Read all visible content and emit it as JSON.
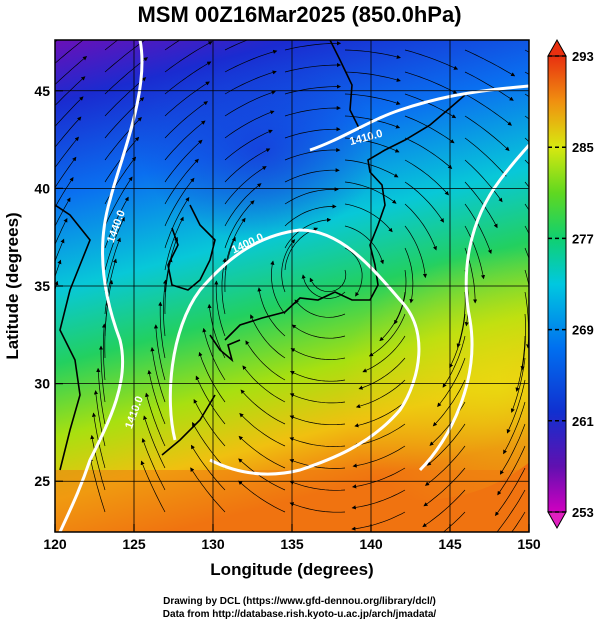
{
  "title": "MSM 00Z16Mar2025 (850.0hPa)",
  "x_axis": {
    "label": "Longitude (degrees)",
    "min": 120,
    "max": 150,
    "ticks": [
      {
        "value": 120,
        "label": "120"
      },
      {
        "value": 125,
        "label": "125"
      },
      {
        "value": 130,
        "label": "130"
      },
      {
        "value": 135,
        "label": "135"
      },
      {
        "value": 140,
        "label": "140"
      },
      {
        "value": 145,
        "label": "145"
      },
      {
        "value": 150,
        "label": "150"
      }
    ]
  },
  "y_axis": {
    "label": "Latitude  (degrees)",
    "min": 22.4,
    "max": 47.6,
    "ticks": [
      {
        "value": 25,
        "label": "25"
      },
      {
        "value": 30,
        "label": "30"
      },
      {
        "value": 35,
        "label": "35"
      },
      {
        "value": 40,
        "label": "40"
      },
      {
        "value": 45,
        "label": "45"
      }
    ]
  },
  "colorbar": {
    "min": 253,
    "max": 293,
    "tick_labels": [
      {
        "value": 293,
        "label": "293"
      },
      {
        "value": 285,
        "label": "285"
      },
      {
        "value": 277,
        "label": "277"
      },
      {
        "value": 269,
        "label": "269"
      },
      {
        "value": 261,
        "label": "261"
      },
      {
        "value": 253,
        "label": "253"
      }
    ],
    "colors": [
      "#c000c0",
      "#5010b0",
      "#1030d0",
      "#0070f0",
      "#00b8e8",
      "#00d8b0",
      "#30d040",
      "#90e010",
      "#e8e810",
      "#f8b010",
      "#f07010",
      "#e83010"
    ]
  },
  "contours": [
    {
      "label": "1410.0"
    },
    {
      "label": "1440.0"
    },
    {
      "label": "1400.0"
    },
    {
      "label": "1410.0"
    }
  ],
  "credits": [
    "Drawing by DCL (https://www.gfd-dennou.org/library/dcl/)",
    "Data from http://database.rish.kyoto-u.ac.jp/arch/jmadata/"
  ],
  "colors": {
    "coastline": "#000000",
    "contour": "#ffffff",
    "streamline": "#000000",
    "grid": "#000000"
  }
}
